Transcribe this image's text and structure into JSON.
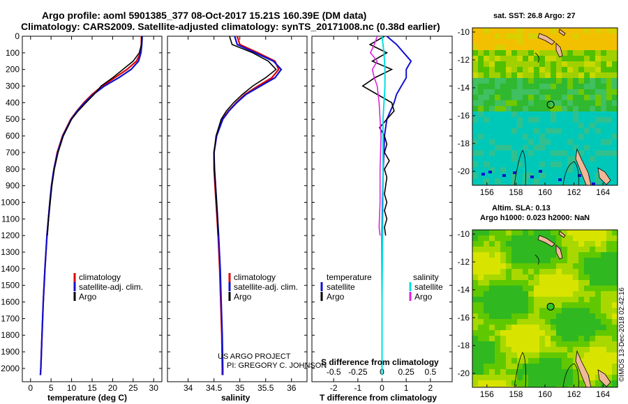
{
  "title": {
    "line1": "Argo profile: aoml 5901385_377 08-Oct-2017 15.21S 160.39E (DM data)",
    "line2": "Climatology: CARS2009. Satellite-adjusted climatology: synTS_20171008.nc (0.38d earlier)"
  },
  "colors": {
    "climatology": "#e00000",
    "satellite": "#1010d0",
    "argo": "#000000",
    "sal_sat": "#00e0e0",
    "sal_argo": "#e020e0"
  },
  "credit": {
    "line1": "US ARGO PROJECT",
    "line2": "PI: GREGORY C. JOHNSON"
  },
  "footer_vertical": "©IMOS 13-Dec-2018 02:42:16",
  "chart_data": [
    {
      "type": "line",
      "id": "temperature",
      "xlabel": "temperature (deg C)",
      "ylabel": "",
      "xlim": [
        -2,
        32
      ],
      "ylim": [
        2080,
        0
      ],
      "x_ticks": [
        0,
        5,
        10,
        15,
        20,
        25,
        30
      ],
      "y_ticks": [
        0,
        100,
        200,
        300,
        400,
        500,
        600,
        700,
        800,
        900,
        1000,
        1100,
        1200,
        1300,
        1400,
        1500,
        1600,
        1700,
        1800,
        1900,
        2000
      ],
      "legend": [
        "climatology",
        "satellite-adj. clim.",
        "Argo"
      ],
      "series": [
        {
          "name": "climatology",
          "depth": [
            0,
            50,
            100,
            150,
            200,
            250,
            300,
            350,
            400,
            450,
            500,
            600,
            700,
            800,
            900,
            1000,
            1200,
            1400,
            1600,
            1800,
            2000,
            2040
          ],
          "values": [
            27,
            27,
            26.8,
            25.8,
            23.5,
            20.5,
            17.5,
            15,
            13,
            11.3,
            9.8,
            7.8,
            6.5,
            5.7,
            5.1,
            4.7,
            4.0,
            3.5,
            3.1,
            2.8,
            2.5,
            2.4
          ]
        },
        {
          "name": "satellite-adj. clim.",
          "depth": [
            0,
            50,
            100,
            150,
            200,
            250,
            300,
            350,
            400,
            450,
            500,
            600,
            700,
            800,
            900,
            1000,
            1200,
            1400,
            1600,
            1800,
            2000,
            2040
          ],
          "values": [
            27.2,
            27.1,
            26.9,
            26.3,
            24.5,
            21.5,
            18,
            15.3,
            13.2,
            11.4,
            9.9,
            7.9,
            6.6,
            5.7,
            5.1,
            4.7,
            4.0,
            3.5,
            3.1,
            2.8,
            2.5,
            2.4
          ]
        },
        {
          "name": "Argo",
          "depth": [
            0,
            50,
            100,
            150,
            200,
            250,
            300,
            350,
            400,
            450,
            500,
            600,
            700,
            800,
            900,
            1000,
            1100,
            1200
          ],
          "values": [
            27.1,
            27,
            26.5,
            25,
            22.5,
            20,
            17.2,
            15.5,
            13.5,
            11.6,
            10,
            8,
            6.7,
            5.8,
            5.2,
            4.8,
            4.4,
            4.1
          ]
        }
      ]
    },
    {
      "type": "line",
      "id": "salinity",
      "xlabel": "salinity",
      "xlim": [
        33.6,
        36.3
      ],
      "ylim": [
        2080,
        0
      ],
      "x_ticks": [
        34,
        34.5,
        35,
        35.5,
        36
      ],
      "legend": [
        "climatology",
        "satellite-adj. clim.",
        "Argo"
      ],
      "series": [
        {
          "name": "climatology",
          "depth": [
            0,
            50,
            100,
            150,
            200,
            250,
            300,
            350,
            400,
            450,
            500,
            600,
            700,
            800,
            900,
            1000,
            1200,
            1400,
            1600,
            1800,
            2000,
            2040
          ],
          "values": [
            34.95,
            35.0,
            35.35,
            35.68,
            35.75,
            35.62,
            35.35,
            35.1,
            34.93,
            34.78,
            34.66,
            34.55,
            34.5,
            34.5,
            34.52,
            34.54,
            34.58,
            34.61,
            34.63,
            34.65,
            34.66,
            34.66
          ]
        },
        {
          "name": "satellite-adj. clim.",
          "depth": [
            0,
            50,
            100,
            150,
            200,
            250,
            300,
            350,
            400,
            450,
            500,
            600,
            700,
            800,
            900,
            1000,
            1200,
            1400,
            1600,
            1800,
            2000,
            2040
          ],
          "values": [
            34.9,
            34.95,
            35.3,
            35.65,
            35.8,
            35.68,
            35.4,
            35.12,
            34.94,
            34.79,
            34.67,
            34.55,
            34.5,
            34.51,
            34.53,
            34.55,
            34.59,
            34.62,
            34.64,
            34.66,
            34.67,
            34.67
          ]
        },
        {
          "name": "Argo",
          "depth": [
            0,
            50,
            100,
            150,
            200,
            250,
            300,
            350,
            400,
            450,
            500,
            600,
            700,
            800,
            900,
            1000,
            1100,
            1200
          ],
          "values": [
            34.8,
            34.85,
            35.25,
            35.55,
            35.7,
            35.5,
            35.25,
            35.05,
            34.88,
            34.74,
            34.64,
            34.54,
            34.5,
            34.51,
            34.53,
            34.55,
            34.57,
            34.58
          ]
        }
      ]
    },
    {
      "type": "line",
      "id": "difference",
      "xlabel": "T difference from climatology",
      "xlabel2": "S difference from climatology",
      "xlim": [
        -2.9,
        2.9
      ],
      "ylim": [
        2080,
        0
      ],
      "x_ticks": [
        -2,
        -1,
        0,
        1,
        2
      ],
      "x_tick_labels": [
        "-2",
        "-1",
        "0",
        "1",
        "2"
      ],
      "x2_ticks": [
        -0.5,
        -0.25,
        0,
        0.25,
        0.5
      ],
      "x2_tick_labels": [
        "-0.5",
        "-0.25",
        "0",
        "0.25",
        "0.5"
      ],
      "legend_left": {
        "heading": "temperature",
        "items": [
          "satellite",
          "Argo"
        ]
      },
      "legend_right": {
        "heading": "salinity",
        "items": [
          "satellite",
          "Argo"
        ]
      },
      "series": [
        {
          "name": "T satellite",
          "depth": [
            0,
            50,
            100,
            150,
            200,
            250,
            300,
            350,
            400,
            500,
            600,
            800,
            1000,
            1200,
            1600,
            2000,
            2040
          ],
          "values": [
            0.2,
            0.6,
            0.9,
            1.2,
            1.0,
            1.0,
            0.8,
            0.6,
            0.5,
            0.2,
            0.1,
            0.05,
            0.02,
            0,
            0,
            0,
            0
          ]
        },
        {
          "name": "T Argo",
          "depth": [
            0,
            50,
            100,
            150,
            200,
            250,
            300,
            350,
            400,
            450,
            500,
            550,
            600,
            650,
            700,
            750,
            800,
            850,
            900,
            950,
            1000,
            1050,
            1100,
            1150,
            1200
          ],
          "values": [
            0.1,
            -0.5,
            0.2,
            -0.4,
            0.4,
            -0.3,
            -0.8,
            -0.2,
            0.4,
            0.5,
            0.2,
            -0.1,
            0.1,
            0.2,
            0.1,
            0.3,
            0.1,
            0.2,
            0.15,
            0.1,
            0.2,
            0.1,
            0.2,
            0.1,
            0.15
          ]
        },
        {
          "name": "S satellite",
          "depth": [
            0,
            100,
            200,
            300,
            400,
            500,
            600,
            800,
            1000,
            1200,
            1600,
            2000,
            2040
          ],
          "values": [
            0,
            0.02,
            0.03,
            0.03,
            0.02,
            0.01,
            0.01,
            0.01,
            0.01,
            0.005,
            0,
            0,
            0
          ]
        },
        {
          "name": "S Argo",
          "depth": [
            0,
            50,
            100,
            150,
            200,
            250,
            300,
            400,
            500,
            600,
            800,
            1000,
            1150,
            1200
          ],
          "values": [
            -0.05,
            -0.08,
            -0.12,
            -0.05,
            -0.1,
            -0.08,
            -0.05,
            -0.03,
            -0.02,
            -0.01,
            -0.02,
            -0.02,
            -0.03,
            -0.02
          ]
        }
      ]
    },
    {
      "type": "heatmap",
      "id": "sst-map",
      "title": "sat. SST: 26.8 Argo: 27",
      "xlim": [
        155,
        165
      ],
      "ylim": [
        -21,
        -9.7
      ],
      "x_ticks": [
        156,
        158,
        160,
        162,
        164
      ],
      "y_ticks": [
        -10,
        -12,
        -14,
        -16,
        -18,
        -20
      ],
      "marker": {
        "lon": 160.39,
        "lat": -15.21
      }
    },
    {
      "type": "heatmap",
      "id": "sla-map",
      "title": "Altim. SLA: 0.13",
      "title2": "Argo h1000: 0.023 h2000: NaN",
      "xlim": [
        155,
        165
      ],
      "ylim": [
        -21,
        -9.7
      ],
      "x_ticks": [
        156,
        158,
        160,
        162,
        164
      ],
      "y_ticks": [
        -10,
        -12,
        -14,
        -16,
        -18,
        -20
      ],
      "marker": {
        "lon": 160.39,
        "lat": -15.21
      }
    }
  ]
}
